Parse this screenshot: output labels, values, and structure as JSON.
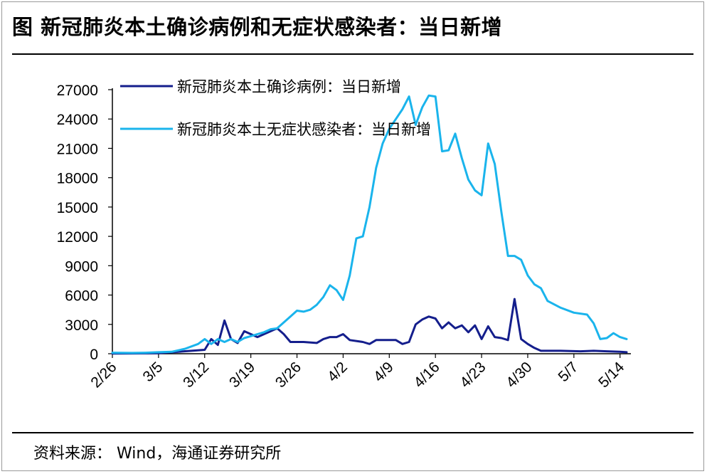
{
  "title": "图  新冠肺炎本土确诊病例和无症状感染者：当日新增",
  "source": "资料来源：  Wind，海通证券研究所",
  "colors": {
    "confirmed": "#141e8c",
    "asymptomatic": "#1ab4ec"
  },
  "chart_data": {
    "type": "line",
    "title": "图  新冠肺炎本土确诊病例和无症状感染者：当日新增",
    "ylim": [
      0,
      27000
    ],
    "yticks": [
      "0",
      "3000",
      "6000",
      "9000",
      "12000",
      "15000",
      "18000",
      "21000",
      "24000",
      "27000"
    ],
    "xticks": [
      "2/26",
      "3/5",
      "3/12",
      "3/19",
      "3/26",
      "4/2",
      "4/9",
      "4/16",
      "4/23",
      "4/30",
      "5/7",
      "5/14"
    ],
    "legend_placement": "top-left",
    "series": [
      {
        "name": "新冠肺炎本土确诊病例：当日新增",
        "points": [
          [
            "2/26",
            20
          ],
          [
            "3/1",
            30
          ],
          [
            "3/5",
            60
          ],
          [
            "3/8",
            200
          ],
          [
            "3/10",
            300
          ],
          [
            "3/12",
            400
          ],
          [
            "3/13",
            1500
          ],
          [
            "3/14",
            900
          ],
          [
            "3/15",
            3400
          ],
          [
            "3/16",
            1500
          ],
          [
            "3/17",
            1100
          ],
          [
            "3/18",
            2300
          ],
          [
            "3/19",
            2000
          ],
          [
            "3/20",
            1700
          ],
          [
            "3/21",
            2000
          ],
          [
            "3/22",
            2300
          ],
          [
            "3/23",
            2600
          ],
          [
            "3/24",
            2000
          ],
          [
            "3/25",
            1200
          ],
          [
            "3/27",
            1200
          ],
          [
            "3/29",
            1100
          ],
          [
            "3/30",
            1500
          ],
          [
            "3/31",
            1700
          ],
          [
            "4/1",
            1700
          ],
          [
            "4/2",
            2000
          ],
          [
            "4/3",
            1400
          ],
          [
            "4/5",
            1200
          ],
          [
            "4/6",
            1000
          ],
          [
            "4/7",
            1400
          ],
          [
            "4/8",
            1400
          ],
          [
            "4/10",
            1400
          ],
          [
            "4/11",
            1000
          ],
          [
            "4/12",
            1200
          ],
          [
            "4/13",
            3000
          ],
          [
            "4/14",
            3500
          ],
          [
            "4/15",
            3800
          ],
          [
            "4/16",
            3600
          ],
          [
            "4/17",
            2600
          ],
          [
            "4/18",
            3200
          ],
          [
            "4/19",
            2600
          ],
          [
            "4/20",
            2900
          ],
          [
            "4/21",
            2200
          ],
          [
            "4/22",
            2900
          ],
          [
            "4/23",
            1500
          ],
          [
            "4/24",
            2800
          ],
          [
            "4/25",
            1700
          ],
          [
            "4/26",
            1600
          ],
          [
            "4/27",
            1400
          ],
          [
            "4/28",
            5600
          ],
          [
            "4/29",
            1500
          ],
          [
            "4/30",
            1000
          ],
          [
            "5/1",
            600
          ],
          [
            "5/2",
            300
          ],
          [
            "5/5",
            300
          ],
          [
            "5/8",
            250
          ],
          [
            "5/10",
            300
          ],
          [
            "5/12",
            250
          ],
          [
            "5/14",
            200
          ],
          [
            "5/15",
            150
          ]
        ]
      },
      {
        "name": "新冠肺炎本土无症状感染者：当日新增",
        "points": [
          [
            "2/26",
            100
          ],
          [
            "3/1",
            80
          ],
          [
            "3/3",
            100
          ],
          [
            "3/5",
            150
          ],
          [
            "3/7",
            200
          ],
          [
            "3/9",
            500
          ],
          [
            "3/11",
            1000
          ],
          [
            "3/12",
            1500
          ],
          [
            "3/13",
            1000
          ],
          [
            "3/14",
            1500
          ],
          [
            "3/15",
            1200
          ],
          [
            "3/16",
            1500
          ],
          [
            "3/17",
            1200
          ],
          [
            "3/18",
            1600
          ],
          [
            "3/19",
            1800
          ],
          [
            "3/20",
            2000
          ],
          [
            "3/21",
            2200
          ],
          [
            "3/22",
            2500
          ],
          [
            "3/23",
            2600
          ],
          [
            "3/24",
            3200
          ],
          [
            "3/25",
            3800
          ],
          [
            "3/26",
            4400
          ],
          [
            "3/27",
            4300
          ],
          [
            "3/28",
            4500
          ],
          [
            "3/29",
            5000
          ],
          [
            "3/30",
            5800
          ],
          [
            "3/31",
            7000
          ],
          [
            "4/1",
            6500
          ],
          [
            "4/2",
            5500
          ],
          [
            "4/3",
            8000
          ],
          [
            "4/4",
            11800
          ],
          [
            "4/5",
            12000
          ],
          [
            "4/6",
            15000
          ],
          [
            "4/7",
            19000
          ],
          [
            "4/8",
            21500
          ],
          [
            "4/9",
            23000
          ],
          [
            "4/10",
            24000
          ],
          [
            "4/11",
            25000
          ],
          [
            "4/12",
            26300
          ],
          [
            "4/13",
            23400
          ],
          [
            "4/14",
            25200
          ],
          [
            "4/15",
            26400
          ],
          [
            "4/16",
            26300
          ],
          [
            "4/17",
            20700
          ],
          [
            "4/18",
            20800
          ],
          [
            "4/19",
            22500
          ],
          [
            "4/20",
            20000
          ],
          [
            "4/21",
            17800
          ],
          [
            "4/22",
            16700
          ],
          [
            "4/23",
            16200
          ],
          [
            "4/24",
            21500
          ],
          [
            "4/25",
            19400
          ],
          [
            "4/26",
            14500
          ],
          [
            "4/27",
            10000
          ],
          [
            "4/28",
            10000
          ],
          [
            "4/29",
            9600
          ],
          [
            "4/30",
            8000
          ],
          [
            "5/1",
            7100
          ],
          [
            "5/2",
            6700
          ],
          [
            "5/3",
            5400
          ],
          [
            "5/5",
            4700
          ],
          [
            "5/7",
            4200
          ],
          [
            "5/9",
            4000
          ],
          [
            "5/10",
            3100
          ],
          [
            "5/11",
            1500
          ],
          [
            "5/12",
            1600
          ],
          [
            "5/13",
            2100
          ],
          [
            "5/14",
            1700
          ],
          [
            "5/15",
            1500
          ]
        ]
      }
    ]
  }
}
